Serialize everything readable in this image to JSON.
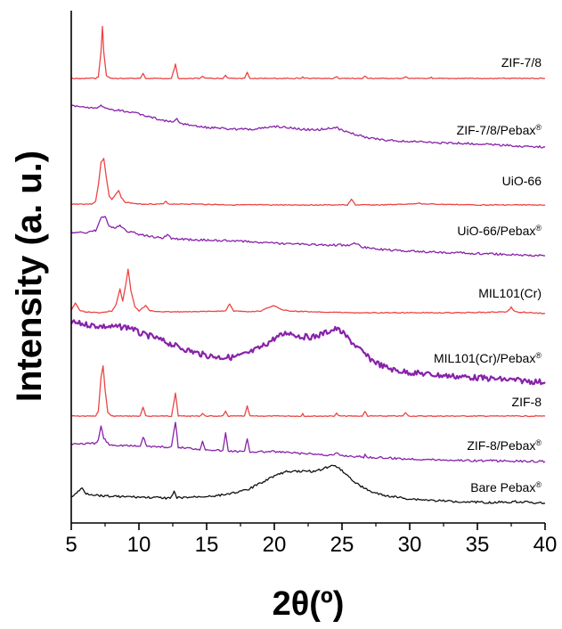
{
  "chart_data": {
    "type": "line",
    "xlabel": "2θ(º)",
    "ylabel": "Intensity (a. u.)",
    "xlim": [
      5,
      40
    ],
    "xticks": [
      "5",
      "10",
      "15",
      "20",
      "25",
      "30",
      "35",
      "40"
    ],
    "y_ticks_shown": false,
    "grid": false,
    "legend": "labels beside each trace",
    "stacked_offset": true,
    "series": [
      {
        "name": "ZIF-7/8",
        "label": "ZIF-7/8",
        "color": "#ee4444",
        "points": [
          [
            5,
            0
          ],
          [
            6.8,
            0
          ],
          [
            7.0,
            2
          ],
          [
            7.2,
            30
          ],
          [
            7.3,
            58
          ],
          [
            7.4,
            30
          ],
          [
            7.6,
            3
          ],
          [
            7.9,
            0
          ],
          [
            10.1,
            0
          ],
          [
            10.3,
            6
          ],
          [
            10.5,
            0
          ],
          [
            12.4,
            0
          ],
          [
            12.7,
            16
          ],
          [
            12.9,
            0
          ],
          [
            14.5,
            0
          ],
          [
            14.7,
            2
          ],
          [
            14.9,
            0
          ],
          [
            16.2,
            0
          ],
          [
            16.4,
            3
          ],
          [
            16.6,
            0
          ],
          [
            17.8,
            0
          ],
          [
            18.0,
            7
          ],
          [
            18.2,
            0
          ],
          [
            22.0,
            0
          ],
          [
            22.1,
            2
          ],
          [
            22.2,
            0
          ],
          [
            24.4,
            0
          ],
          [
            24.6,
            2
          ],
          [
            24.8,
            0
          ],
          [
            26.5,
            0
          ],
          [
            26.7,
            3
          ],
          [
            26.9,
            0
          ],
          [
            29.5,
            0
          ],
          [
            29.7,
            2
          ],
          [
            29.9,
            0
          ],
          [
            31.5,
            0
          ],
          [
            31.6,
            1
          ],
          [
            31.7,
            0
          ],
          [
            40,
            0
          ]
        ]
      },
      {
        "name": "ZIF-7/8/Pebax®",
        "label": "ZIF-7/8/Pebax",
        "color": "#8822aa",
        "points": [
          [
            5,
            46
          ],
          [
            6,
            45
          ],
          [
            7,
            44
          ],
          [
            7.2,
            46
          ],
          [
            7.5,
            43
          ],
          [
            8,
            42
          ],
          [
            9,
            40
          ],
          [
            10,
            37
          ],
          [
            11,
            33
          ],
          [
            12,
            29
          ],
          [
            12.6,
            28
          ],
          [
            12.8,
            31
          ],
          [
            13,
            27
          ],
          [
            14,
            24
          ],
          [
            15,
            22
          ],
          [
            16,
            21
          ],
          [
            17,
            20
          ],
          [
            18,
            20
          ],
          [
            19,
            21
          ],
          [
            20,
            23
          ],
          [
            21,
            22
          ],
          [
            22,
            20
          ],
          [
            23,
            19
          ],
          [
            24,
            21
          ],
          [
            24.5,
            22
          ],
          [
            25,
            19
          ],
          [
            26,
            14
          ],
          [
            27,
            10
          ],
          [
            28,
            8
          ],
          [
            30,
            6
          ],
          [
            32,
            5
          ],
          [
            34,
            4
          ],
          [
            36,
            3
          ],
          [
            38,
            1
          ],
          [
            40,
            0
          ]
        ]
      },
      {
        "name": "UiO-66",
        "label": "UiO-66",
        "color": "#ee4444",
        "points": [
          [
            5,
            1
          ],
          [
            6.5,
            1
          ],
          [
            6.8,
            4
          ],
          [
            7.0,
            22
          ],
          [
            7.2,
            48
          ],
          [
            7.4,
            52
          ],
          [
            7.6,
            30
          ],
          [
            7.8,
            10
          ],
          [
            8.0,
            6
          ],
          [
            8.3,
            12
          ],
          [
            8.5,
            16
          ],
          [
            8.7,
            8
          ],
          [
            9.0,
            3
          ],
          [
            9.5,
            2
          ],
          [
            10,
            1
          ],
          [
            11.8,
            1
          ],
          [
            12.0,
            4
          ],
          [
            12.2,
            1
          ],
          [
            14,
            1
          ],
          [
            17,
            0
          ],
          [
            20,
            0
          ],
          [
            25.4,
            0
          ],
          [
            25.7,
            6
          ],
          [
            26.0,
            0
          ],
          [
            28,
            0
          ],
          [
            30,
            1
          ],
          [
            30.7,
            2
          ],
          [
            31,
            1
          ],
          [
            35,
            0
          ],
          [
            40,
            0
          ]
        ]
      },
      {
        "name": "UiO-66/Pebax®",
        "label": "UiO-66/Pebax",
        "color": "#8822aa",
        "points": [
          [
            5,
            26
          ],
          [
            6,
            26
          ],
          [
            6.8,
            28
          ],
          [
            7.2,
            42
          ],
          [
            7.5,
            44
          ],
          [
            7.8,
            34
          ],
          [
            8.2,
            30
          ],
          [
            8.6,
            34
          ],
          [
            9.0,
            28
          ],
          [
            10,
            24
          ],
          [
            11,
            21
          ],
          [
            11.8,
            20
          ],
          [
            12.1,
            24
          ],
          [
            12.4,
            19
          ],
          [
            14,
            18
          ],
          [
            16,
            17
          ],
          [
            18,
            16
          ],
          [
            20,
            14
          ],
          [
            22,
            13
          ],
          [
            24,
            12
          ],
          [
            25.6,
            12
          ],
          [
            26,
            14
          ],
          [
            26.4,
            10
          ],
          [
            28,
            7
          ],
          [
            30,
            5
          ],
          [
            32,
            4
          ],
          [
            34,
            3
          ],
          [
            36,
            2
          ],
          [
            38,
            1
          ],
          [
            40,
            0
          ]
        ]
      },
      {
        "name": "MIL101(Cr)",
        "label": "MIL101(Cr)",
        "color": "#ee4444",
        "points": [
          [
            5,
            4
          ],
          [
            5.3,
            12
          ],
          [
            5.6,
            4
          ],
          [
            6,
            2
          ],
          [
            7,
            1
          ],
          [
            8.0,
            3
          ],
          [
            8.3,
            10
          ],
          [
            8.6,
            28
          ],
          [
            8.8,
            14
          ],
          [
            9.0,
            30
          ],
          [
            9.2,
            50
          ],
          [
            9.4,
            26
          ],
          [
            9.7,
            8
          ],
          [
            10,
            3
          ],
          [
            10.5,
            9
          ],
          [
            10.8,
            3
          ],
          [
            12,
            2
          ],
          [
            14,
            2
          ],
          [
            16.4,
            3
          ],
          [
            16.7,
            11
          ],
          [
            17,
            3
          ],
          [
            18,
            2
          ],
          [
            19,
            3
          ],
          [
            19.6,
            7
          ],
          [
            20,
            9
          ],
          [
            20.5,
            5
          ],
          [
            21,
            3
          ],
          [
            23,
            2
          ],
          [
            26,
            1
          ],
          [
            30,
            1
          ],
          [
            34,
            1
          ],
          [
            37.2,
            2
          ],
          [
            37.5,
            7
          ],
          [
            37.8,
            2
          ],
          [
            40,
            0
          ]
        ]
      },
      {
        "name": "MIL101(Cr)/Pebax®",
        "label": "MIL101(Cr)/Pebax",
        "color": "#8822aa",
        "points": [
          [
            5,
            68
          ],
          [
            6,
            66
          ],
          [
            7,
            64
          ],
          [
            8,
            63
          ],
          [
            9,
            63
          ],
          [
            9.5,
            62
          ],
          [
            10,
            56
          ],
          [
            11,
            52
          ],
          [
            12,
            46
          ],
          [
            13,
            40
          ],
          [
            14,
            35
          ],
          [
            15,
            31
          ],
          [
            16,
            29
          ],
          [
            17,
            29
          ],
          [
            18,
            33
          ],
          [
            19,
            40
          ],
          [
            20,
            50
          ],
          [
            21,
            57
          ],
          [
            22,
            52
          ],
          [
            23,
            52
          ],
          [
            24,
            58
          ],
          [
            24.6,
            61
          ],
          [
            25,
            57
          ],
          [
            26,
            42
          ],
          [
            27,
            28
          ],
          [
            28,
            19
          ],
          [
            29,
            14
          ],
          [
            30,
            12
          ],
          [
            32,
            9
          ],
          [
            34,
            7
          ],
          [
            36,
            5
          ],
          [
            38,
            3
          ],
          [
            40,
            1
          ]
        ]
      },
      {
        "name": "ZIF-8",
        "label": "ZIF-8",
        "color": "#ee4444",
        "points": [
          [
            5,
            0
          ],
          [
            6.8,
            0
          ],
          [
            7.0,
            5
          ],
          [
            7.2,
            44
          ],
          [
            7.35,
            56
          ],
          [
            7.5,
            30
          ],
          [
            7.7,
            4
          ],
          [
            8,
            0
          ],
          [
            10.1,
            0
          ],
          [
            10.3,
            10
          ],
          [
            10.5,
            0
          ],
          [
            12.4,
            0
          ],
          [
            12.7,
            26
          ],
          [
            12.9,
            0
          ],
          [
            14.5,
            0
          ],
          [
            14.7,
            3
          ],
          [
            14.9,
            0
          ],
          [
            16.2,
            0
          ],
          [
            16.4,
            5
          ],
          [
            16.6,
            0
          ],
          [
            17.8,
            0
          ],
          [
            18.0,
            11
          ],
          [
            18.2,
            0
          ],
          [
            22.0,
            0
          ],
          [
            22.1,
            3
          ],
          [
            22.2,
            0
          ],
          [
            24.4,
            0
          ],
          [
            24.6,
            3
          ],
          [
            24.8,
            0
          ],
          [
            26.5,
            0
          ],
          [
            26.7,
            5
          ],
          [
            26.9,
            0
          ],
          [
            29.5,
            0
          ],
          [
            29.7,
            4
          ],
          [
            29.9,
            0
          ],
          [
            40,
            0
          ]
        ]
      },
      {
        "name": "ZIF-8/Pebax®",
        "label": "ZIF-8/Pebax",
        "color": "#8822aa",
        "points": [
          [
            5,
            22
          ],
          [
            6.8,
            22
          ],
          [
            7.0,
            26
          ],
          [
            7.2,
            42
          ],
          [
            7.4,
            28
          ],
          [
            7.8,
            21
          ],
          [
            10.1,
            19
          ],
          [
            10.3,
            30
          ],
          [
            10.6,
            19
          ],
          [
            12.4,
            18
          ],
          [
            12.7,
            46
          ],
          [
            12.9,
            18
          ],
          [
            14.5,
            16
          ],
          [
            14.7,
            24
          ],
          [
            14.9,
            16
          ],
          [
            16.2,
            14
          ],
          [
            16.4,
            34
          ],
          [
            16.6,
            14
          ],
          [
            17.8,
            13
          ],
          [
            18.0,
            28
          ],
          [
            18.2,
            13
          ],
          [
            20,
            13
          ],
          [
            22,
            11
          ],
          [
            24.4,
            9
          ],
          [
            24.6,
            12
          ],
          [
            24.8,
            9
          ],
          [
            26.6,
            7
          ],
          [
            26.7,
            10
          ],
          [
            26.8,
            7
          ],
          [
            29.7,
            5
          ],
          [
            30,
            5
          ],
          [
            32,
            4
          ],
          [
            35,
            3
          ],
          [
            40,
            2
          ]
        ]
      },
      {
        "name": "Bare Pebax®",
        "label": "Bare Pebax",
        "color": "#111111",
        "points": [
          [
            5,
            8
          ],
          [
            5.5,
            14
          ],
          [
            5.8,
            18
          ],
          [
            6.1,
            12
          ],
          [
            7,
            10
          ],
          [
            8,
            9
          ],
          [
            10,
            8
          ],
          [
            12,
            7
          ],
          [
            12.4,
            8
          ],
          [
            12.6,
            14
          ],
          [
            12.8,
            7
          ],
          [
            14,
            8
          ],
          [
            16,
            10
          ],
          [
            18,
            16
          ],
          [
            19,
            24
          ],
          [
            20,
            32
          ],
          [
            21,
            37
          ],
          [
            22,
            37
          ],
          [
            23,
            37
          ],
          [
            24,
            42
          ],
          [
            24.5,
            44
          ],
          [
            25,
            38
          ],
          [
            26,
            24
          ],
          [
            27,
            15
          ],
          [
            28,
            10
          ],
          [
            30,
            6
          ],
          [
            32,
            4
          ],
          [
            34,
            3
          ],
          [
            36,
            2
          ],
          [
            38,
            3
          ],
          [
            40,
            1
          ]
        ]
      }
    ]
  }
}
